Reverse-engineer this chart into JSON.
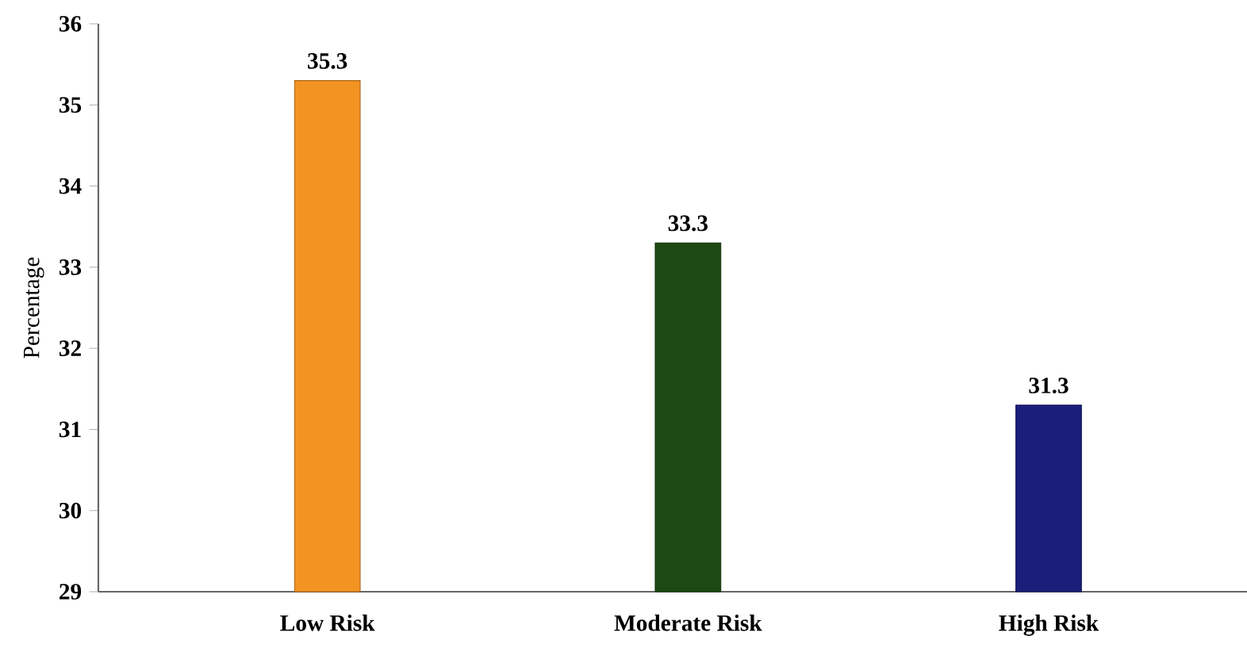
{
  "chart_data": {
    "type": "bar",
    "ylabel": "Percentage",
    "categories": [
      "Low Risk",
      "Moderate Risk",
      "High Risk"
    ],
    "values": [
      35.3,
      33.3,
      31.3
    ],
    "colors": [
      "#f39322",
      "#1d4a12",
      "#1b1f7a"
    ],
    "ylim": [
      29,
      36
    ],
    "yticks": [
      29,
      30,
      31,
      32,
      33,
      34,
      35,
      36
    ],
    "data_labels": true
  }
}
